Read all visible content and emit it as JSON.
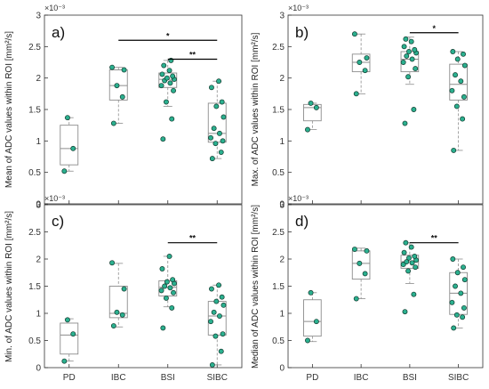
{
  "colors": {
    "point_fill": "#2bb08f",
    "point_edge": "#123a2e",
    "box_edge": "#8c8c8c",
    "median": "#8c8c8c",
    "whisker": "#8c8c8c",
    "sig_bar": "#000000",
    "axes": "#333333"
  },
  "chart_data": [
    {
      "type": "box",
      "panel": "a)",
      "ylabel": "Mean of ADC values within ROI  [mm²/s]",
      "exponent": "×10⁻³",
      "categories": [
        "PD",
        "IBC",
        "BSI",
        "SIBC"
      ],
      "ylim": [
        0,
        3
      ],
      "yticks": [
        "0",
        "0.5",
        "1",
        "1.5",
        "2",
        "2.5",
        "3"
      ],
      "groups": [
        {
          "name": "PD",
          "q1": 0.62,
          "median": 0.88,
          "q3": 1.25,
          "whisker_low": 0.52,
          "whisker_high": 1.37,
          "points": [
            0.52,
            0.88,
            1.37
          ]
        },
        {
          "name": "IBC",
          "q1": 1.65,
          "median": 1.88,
          "q3": 2.13,
          "whisker_low": 1.28,
          "whisker_high": 2.17,
          "points": [
            1.28,
            1.7,
            1.88,
            2.13,
            2.17
          ]
        },
        {
          "name": "BSI",
          "q1": 1.85,
          "median": 1.98,
          "q3": 2.08,
          "whisker_low": 1.55,
          "whisker_high": 2.28,
          "points": [
            1.03,
            1.35,
            1.62,
            1.8,
            1.88,
            1.92,
            1.96,
            1.98,
            2.0,
            2.03,
            2.06,
            2.12,
            2.2,
            2.28
          ]
        },
        {
          "name": "SIBC",
          "q1": 0.98,
          "median": 1.12,
          "q3": 1.6,
          "whisker_low": 0.72,
          "whisker_high": 1.95,
          "points": [
            0.72,
            0.82,
            0.96,
            1.0,
            1.05,
            1.12,
            1.2,
            1.38,
            1.55,
            1.62,
            1.85,
            1.95
          ]
        }
      ],
      "significance": [
        {
          "from": "IBC",
          "to": "SIBC",
          "y": 2.6,
          "label": "*"
        },
        {
          "from": "BSI",
          "to": "SIBC",
          "y": 2.3,
          "label": "**"
        }
      ]
    },
    {
      "type": "box",
      "panel": "b)",
      "ylabel": "Max. of ADC values within ROI  [mm²/s]",
      "exponent": "×10⁻³",
      "categories": [
        "PD",
        "IBC",
        "BSI",
        "SIBC"
      ],
      "ylim": [
        0,
        3
      ],
      "yticks": [
        "0",
        "0.5",
        "1",
        "1.5",
        "2",
        "2.5",
        "3"
      ],
      "groups": [
        {
          "name": "PD",
          "q1": 1.32,
          "median": 1.53,
          "q3": 1.58,
          "whisker_low": 1.18,
          "whisker_high": 1.6,
          "points": [
            1.18,
            1.53,
            1.6
          ]
        },
        {
          "name": "IBC",
          "q1": 2.1,
          "median": 2.25,
          "q3": 2.38,
          "whisker_low": 1.75,
          "whisker_high": 2.7,
          "points": [
            1.75,
            2.12,
            2.25,
            2.32,
            2.7
          ]
        },
        {
          "name": "BSI",
          "q1": 2.1,
          "median": 2.3,
          "q3": 2.42,
          "whisker_low": 1.9,
          "whisker_high": 2.65,
          "points": [
            1.28,
            1.5,
            2.02,
            2.15,
            2.25,
            2.3,
            2.35,
            2.4,
            2.42,
            2.45,
            2.5,
            2.58,
            2.62
          ]
        },
        {
          "name": "SIBC",
          "q1": 1.65,
          "median": 1.9,
          "q3": 2.22,
          "whisker_low": 0.85,
          "whisker_high": 2.42,
          "points": [
            0.85,
            1.35,
            1.55,
            1.7,
            1.8,
            1.95,
            2.05,
            2.2,
            2.3,
            2.38,
            2.42
          ]
        }
      ],
      "significance": [
        {
          "from": "BSI",
          "to": "SIBC",
          "y": 2.72,
          "label": "*"
        }
      ]
    },
    {
      "type": "box",
      "panel": "c)",
      "ylabel": "Min. of ADC values within ROI  [mm²/s]",
      "exponent": "×10⁻³",
      "categories": [
        "PD",
        "IBC",
        "BSI",
        "SIBC"
      ],
      "ylim": [
        0,
        3
      ],
      "yticks": [
        "0",
        "0.5",
        "1",
        "1.5",
        "2",
        "2.5",
        "3"
      ],
      "groups": [
        {
          "name": "PD",
          "q1": 0.25,
          "median": 0.6,
          "q3": 0.82,
          "whisker_low": 0.12,
          "whisker_high": 0.9,
          "points": [
            0.12,
            0.62,
            0.88
          ]
        },
        {
          "name": "IBC",
          "q1": 0.92,
          "median": 1.0,
          "q3": 1.5,
          "whisker_low": 0.75,
          "whisker_high": 1.92,
          "points": [
            0.77,
            0.97,
            1.02,
            1.45,
            1.93
          ]
        },
        {
          "name": "BSI",
          "q1": 1.32,
          "median": 1.48,
          "q3": 1.6,
          "whisker_low": 1.12,
          "whisker_high": 2.05,
          "points": [
            0.73,
            1.1,
            1.28,
            1.38,
            1.42,
            1.47,
            1.5,
            1.55,
            1.58,
            1.62,
            1.82,
            2.05
          ]
        },
        {
          "name": "SIBC",
          "q1": 0.6,
          "median": 0.95,
          "q3": 1.22,
          "whisker_low": 0.05,
          "whisker_high": 1.52,
          "points": [
            0.05,
            0.3,
            0.58,
            0.62,
            0.85,
            0.95,
            1.02,
            1.15,
            1.22,
            1.3,
            1.45,
            1.52
          ]
        }
      ],
      "significance": [
        {
          "from": "BSI",
          "to": "SIBC",
          "y": 2.3,
          "label": "**"
        }
      ]
    },
    {
      "type": "box",
      "panel": "d)",
      "ylabel": "Median of ADC values within ROI  [mm²/s]",
      "exponent": "×10⁻³",
      "categories": [
        "PD",
        "IBC",
        "BSI",
        "SIBC"
      ],
      "ylim": [
        0,
        3
      ],
      "yticks": [
        "0",
        "0.5",
        "1",
        "1.5",
        "2",
        "2.5",
        "3"
      ],
      "groups": [
        {
          "name": "PD",
          "q1": 0.58,
          "median": 0.85,
          "q3": 1.25,
          "whisker_low": 0.48,
          "whisker_high": 1.38,
          "points": [
            0.5,
            0.85,
            1.38
          ]
        },
        {
          "name": "IBC",
          "q1": 1.63,
          "median": 1.92,
          "q3": 2.15,
          "whisker_low": 1.27,
          "whisker_high": 2.2,
          "points": [
            1.27,
            1.73,
            1.92,
            2.15,
            2.18
          ]
        },
        {
          "name": "BSI",
          "q1": 1.83,
          "median": 1.95,
          "q3": 2.07,
          "whisker_low": 1.55,
          "whisker_high": 2.3,
          "points": [
            1.03,
            1.35,
            1.78,
            1.85,
            1.9,
            1.93,
            1.95,
            1.98,
            2.02,
            2.05,
            2.12,
            2.22,
            2.3
          ]
        },
        {
          "name": "SIBC",
          "q1": 0.98,
          "median": 1.37,
          "q3": 1.75,
          "whisker_low": 0.73,
          "whisker_high": 2.0,
          "points": [
            0.73,
            0.93,
            0.97,
            1.1,
            1.2,
            1.37,
            1.5,
            1.62,
            1.75,
            1.85,
            2.0
          ]
        }
      ],
      "significance": [
        {
          "from": "BSI",
          "to": "SIBC",
          "y": 2.3,
          "label": "**"
        }
      ]
    }
  ]
}
